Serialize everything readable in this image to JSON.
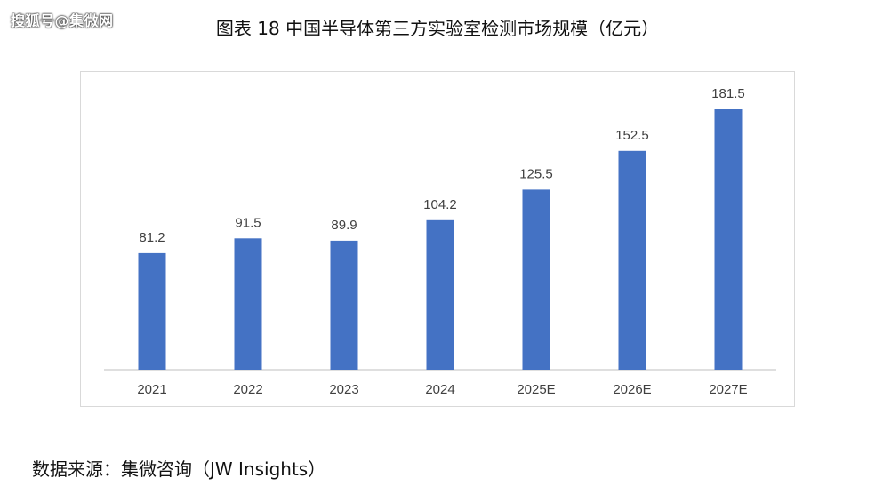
{
  "watermark": "搜狐号@集微网",
  "title": "图表 18 中国半导体第三方实验室检测市场规模（亿元）",
  "source": "数据来源：集微咨询（JW Insights）",
  "colors": {
    "bar": "#4472c4",
    "axis": "#bfbfbf",
    "label": "#404040"
  },
  "chart_data": {
    "type": "bar",
    "title": "图表 18 中国半导体第三方实验室检测市场规模（亿元）",
    "xlabel": "",
    "ylabel": "",
    "categories": [
      "2021",
      "2022",
      "2023",
      "2024",
      "2025E",
      "2026E",
      "2027E"
    ],
    "values": [
      81.2,
      91.5,
      89.9,
      104.2,
      125.5,
      152.5,
      181.5
    ],
    "value_labels": [
      "81.2",
      "91.5",
      "89.9",
      "104.2",
      "125.5",
      "152.5",
      "181.5"
    ],
    "ylim": [
      0,
      181.5
    ],
    "grid": false,
    "legend": "none",
    "data_labels": true
  }
}
